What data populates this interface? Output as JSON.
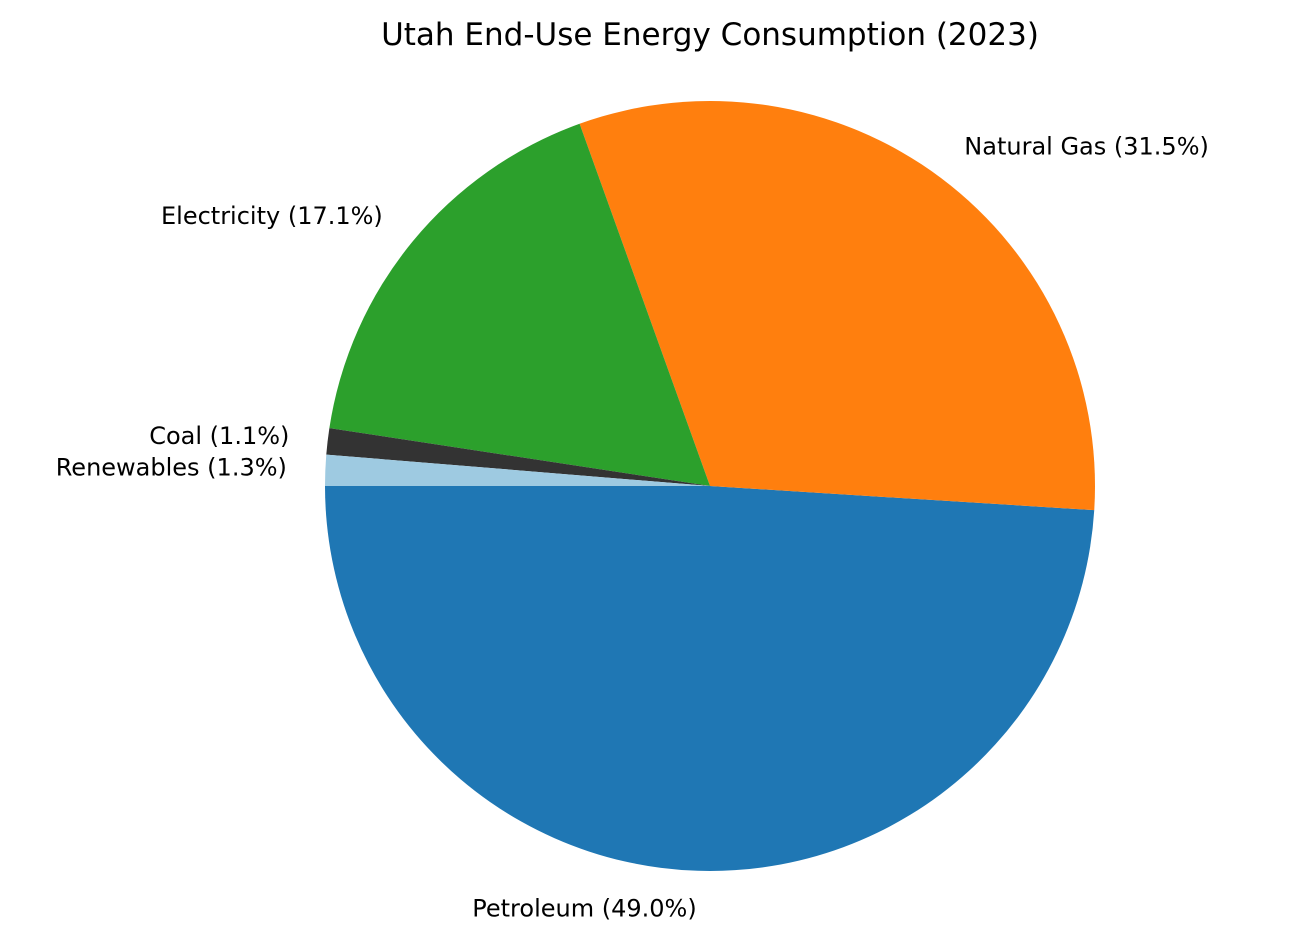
{
  "chart_data": {
    "type": "pie",
    "title": "Utah End-Use Energy Consumption (2023)",
    "start_angle_deg": 180,
    "direction": "counterclockwise",
    "slices": [
      {
        "name": "Petroleum",
        "value": 49.0,
        "label": "Petroleum (49.0%)",
        "color": "#1f77b4"
      },
      {
        "name": "Natural Gas",
        "value": 31.5,
        "label": "Natural Gas (31.5%)",
        "color": "#ff7f0e"
      },
      {
        "name": "Electricity",
        "value": 17.1,
        "label": "Electricity (17.1%)",
        "color": "#2ca02c"
      },
      {
        "name": "Coal",
        "value": 1.1,
        "label": "Coal (1.1%)",
        "color": "#333333"
      },
      {
        "name": "Renewables",
        "value": 1.3,
        "label": "Renewables (1.3%)",
        "color": "#9ecae1"
      }
    ]
  }
}
